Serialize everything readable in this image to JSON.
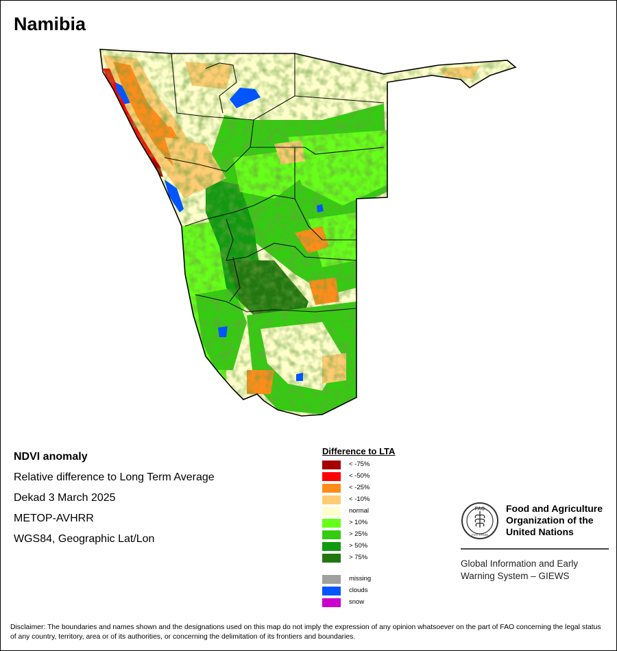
{
  "map": {
    "title": "Namibia",
    "description_lines": [
      "NDVI anomaly",
      "Relative difference to Long Term Average",
      "Dekad 3 March 2025",
      "METOP-AVHRR",
      "WGS84, Geographic Lat/Lon"
    ]
  },
  "legend": {
    "title": "Difference to LTA",
    "items": [
      {
        "label": "< -75%",
        "color": "#a50000"
      },
      {
        "label": "< -50%",
        "color": "#ff0000"
      },
      {
        "label": "< -25%",
        "color": "#ff8c1a"
      },
      {
        "label": "< -10%",
        "color": "#ffcc73"
      },
      {
        "label": "normal",
        "color": "#ffffcc"
      },
      {
        "label": "> 10%",
        "color": "#66ff1a"
      },
      {
        "label": "> 25%",
        "color": "#33cc11"
      },
      {
        "label": "> 50%",
        "color": "#119911"
      },
      {
        "label": "> 75%",
        "color": "#227711"
      }
    ],
    "extra_items": [
      {
        "label": "missing",
        "color": "#a0a0a0"
      },
      {
        "label": "clouds",
        "color": "#0055ff"
      },
      {
        "label": "snow",
        "color": "#cc00cc"
      }
    ]
  },
  "organization": {
    "name": "Food and Agriculture Organization of the United Nations",
    "name_lines": [
      "Food and Agriculture",
      "Organization of the",
      "United Nations"
    ],
    "emblem_text": "FAO",
    "emblem_motto": "FIAT PANIS",
    "program_lines": [
      "Global Information and Early",
      "Warning System – GIEWS"
    ]
  },
  "disclaimer": "Disclaimer: The boundaries and names shown and the designations used on this map do not imply the expression of any opinion whatsoever on the part of FAO concerning the legal status of any country, territory, area or of its authorities, or concerning the delimitation of its frontiers and boundaries."
}
